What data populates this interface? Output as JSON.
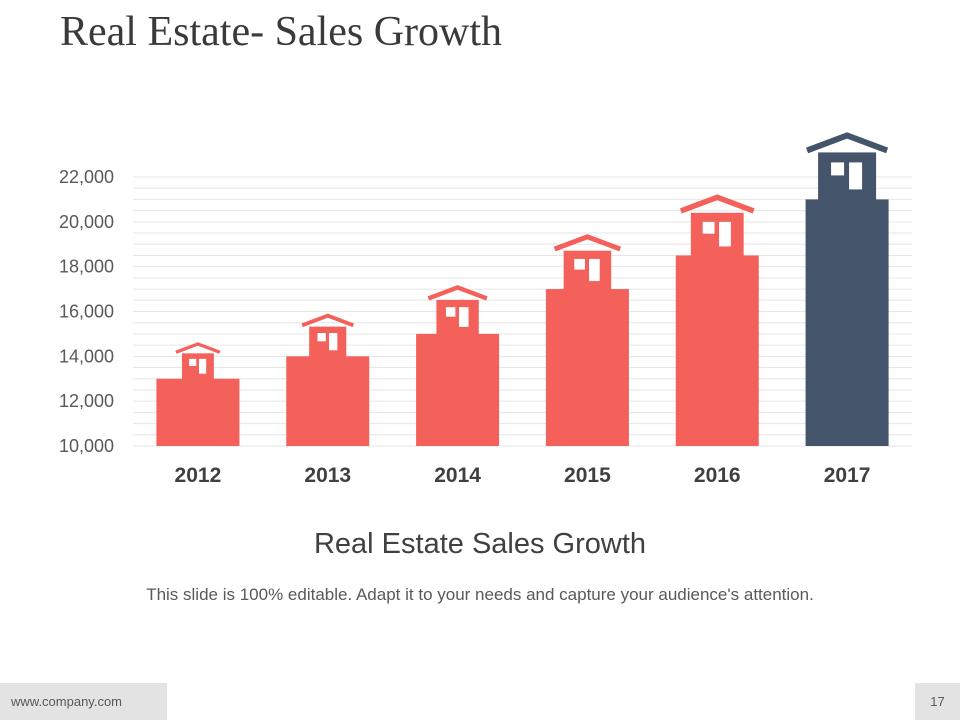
{
  "slide": {
    "title": "Real Estate- Sales Growth",
    "subtitle": "Real Estate Sales Growth",
    "description": "This slide is 100% editable. Adapt it to your needs and capture your audience's attention.",
    "footer_url": "www.company.com",
    "page_number": "17"
  },
  "colors": {
    "bar": "#f4605a",
    "highlight": "#44546a",
    "gridline": "#e6e6e6",
    "title_text": "#3a3a3a"
  },
  "chart_data": {
    "type": "bar",
    "title": "Real Estate Sales Growth",
    "xlabel": "",
    "ylabel": "",
    "categories": [
      "2012",
      "2013",
      "2014",
      "2015",
      "2016",
      "2017"
    ],
    "values": [
      13000,
      14000,
      15000,
      17000,
      18500,
      21000
    ],
    "highlight_index": 5,
    "ylim": [
      10000,
      22000
    ],
    "yticks": [
      10000,
      12000,
      14000,
      16000,
      18000,
      20000,
      22000
    ],
    "ytick_labels": [
      "10,000",
      "12,000",
      "14,000",
      "16,000",
      "18,000",
      "20,000",
      "22,000"
    ],
    "grid": true,
    "legend": "none"
  }
}
